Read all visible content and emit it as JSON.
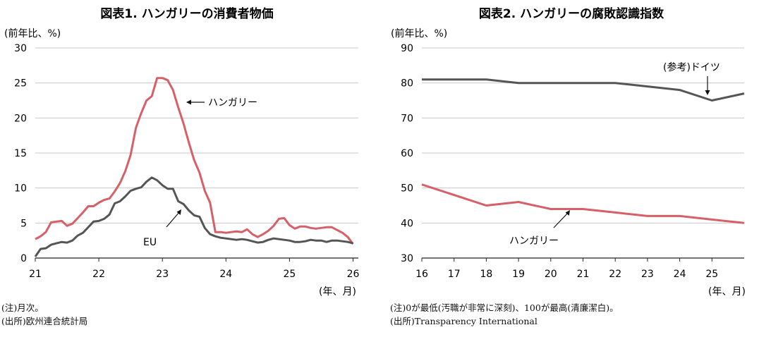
{
  "chart_data": [
    {
      "type": "line",
      "title": "図表1. ハンガリーの消費者物価",
      "unit_label": "(前年比、%)",
      "x_unit_label": "(年、月)",
      "x_tick_labels": [
        "21",
        "22",
        "23",
        "24",
        "25",
        "26"
      ],
      "y_ticks": [
        0,
        5,
        10,
        15,
        20,
        25,
        30
      ],
      "ylim": [
        0,
        30
      ],
      "xlim": [
        0,
        61
      ],
      "grid": true,
      "series": [
        {
          "name": "ハンガリー",
          "color": "#d75f67",
          "x": [
            0,
            1,
            2,
            3,
            4,
            5,
            6,
            7,
            8,
            9,
            10,
            11,
            12,
            13,
            14,
            15,
            16,
            17,
            18,
            19,
            20,
            21,
            22,
            23,
            24,
            25,
            26,
            27,
            28,
            29,
            30,
            31,
            32,
            33,
            34,
            35,
            36,
            37,
            38,
            39,
            40,
            41,
            42,
            43,
            44,
            45,
            46,
            47,
            48,
            49,
            50,
            51,
            52,
            53,
            54,
            55,
            56,
            57,
            58,
            59,
            60
          ],
          "values": [
            2.7,
            3.1,
            3.7,
            5.1,
            5.2,
            5.3,
            4.6,
            4.9,
            5.7,
            6.5,
            7.4,
            7.4,
            7.9,
            8.3,
            8.5,
            9.5,
            10.7,
            12.4,
            14.7,
            18.6,
            20.7,
            22.5,
            23.1,
            25.7,
            25.7,
            25.4,
            24.0,
            21.5,
            19.2,
            16.5,
            14.0,
            12.2,
            9.6,
            7.9,
            3.7,
            3.7,
            3.6,
            3.7,
            3.8,
            3.7,
            4.1,
            3.4,
            3.0,
            3.4,
            3.9,
            4.6,
            5.6,
            5.7,
            4.7,
            4.2,
            4.5,
            4.5,
            4.3,
            4.2,
            4.3,
            4.4,
            4.4,
            4.0,
            3.6,
            3.0,
            2.0
          ]
        },
        {
          "name": "EU",
          "color": "#555555",
          "x": [
            0,
            1,
            2,
            3,
            4,
            5,
            6,
            7,
            8,
            9,
            10,
            11,
            12,
            13,
            14,
            15,
            16,
            17,
            18,
            19,
            20,
            21,
            22,
            23,
            24,
            25,
            26,
            27,
            28,
            29,
            30,
            31,
            32,
            33,
            34,
            35,
            36,
            37,
            38,
            39,
            40,
            41,
            42,
            43,
            44,
            45,
            46,
            47,
            48,
            49,
            50,
            51,
            52,
            53,
            54,
            55,
            56,
            57,
            58,
            59,
            60
          ],
          "values": [
            0.2,
            1.3,
            1.4,
            1.9,
            2.1,
            2.3,
            2.2,
            2.5,
            3.2,
            3.6,
            4.4,
            5.2,
            5.3,
            5.6,
            6.2,
            7.8,
            8.1,
            8.8,
            9.6,
            9.9,
            10.1,
            10.9,
            11.5,
            11.1,
            10.4,
            9.9,
            9.9,
            8.1,
            7.7,
            6.8,
            6.1,
            5.9,
            4.3,
            3.4,
            3.1,
            2.9,
            2.8,
            2.7,
            2.6,
            2.7,
            2.6,
            2.4,
            2.2,
            2.3,
            2.6,
            2.8,
            2.7,
            2.6,
            2.5,
            2.3,
            2.3,
            2.4,
            2.6,
            2.5,
            2.5,
            2.3,
            2.5,
            2.5,
            2.4,
            2.3,
            2.1
          ]
        }
      ],
      "annotations": [
        {
          "text": "ハンガリー",
          "series": "ハンガリー"
        },
        {
          "text": "EU",
          "series": "EU"
        }
      ]
    },
    {
      "type": "line",
      "title": "図表2. ハンガリーの腐敗認識指数",
      "unit_label": "(前年比、%)",
      "x_unit_label": "(年、月)",
      "x_tick_labels": [
        "16",
        "17",
        "18",
        "19",
        "20",
        "21",
        "22",
        "23",
        "24",
        "25"
      ],
      "y_ticks": [
        30,
        40,
        50,
        60,
        70,
        80,
        90
      ],
      "ylim": [
        30,
        90
      ],
      "xlim": [
        16,
        26
      ],
      "grid": true,
      "series": [
        {
          "name": "ドイツ",
          "color": "#555555",
          "x": [
            16,
            17,
            18,
            19,
            20,
            21,
            22,
            23,
            24,
            25,
            26
          ],
          "values": [
            81,
            81,
            81,
            80,
            80,
            80,
            80,
            79,
            78,
            75,
            77
          ]
        },
        {
          "name": "ハンガリー",
          "color": "#d75f67",
          "x": [
            16,
            17,
            18,
            19,
            20,
            21,
            22,
            23,
            24,
            25,
            26
          ],
          "values": [
            51,
            48,
            45,
            46,
            44,
            44,
            43,
            42,
            42,
            41,
            40
          ]
        }
      ],
      "annotations": [
        {
          "text": "(参考)ドイツ",
          "series": "ドイツ"
        },
        {
          "text": "ハンガリー",
          "series": "ハンガリー"
        }
      ]
    }
  ],
  "notes": {
    "left": [
      "(注)月次。",
      "(出所)欧州連合統計局"
    ],
    "right": [
      "(注)0が最低(汚職が非常に深刻)、100が最高(清廉潔白)。",
      "(出所)Transparency International"
    ]
  }
}
